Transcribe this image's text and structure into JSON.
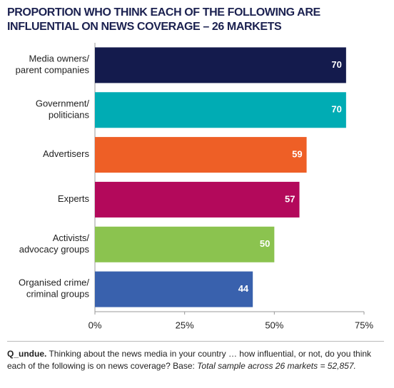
{
  "chart_data": {
    "type": "barh",
    "title": "PROPORTION WHO THINK EACH OF THE FOLLOWING ARE INFLUENTIAL ON NEWS COVERAGE – 26 MARKETS",
    "categories": [
      [
        "Media owners/",
        "parent companies"
      ],
      [
        "Government/",
        "politicians"
      ],
      [
        "Advertisers"
      ],
      [
        "Experts"
      ],
      [
        "Activists/",
        "advocacy groups"
      ],
      [
        "Organised crime/",
        "criminal groups"
      ]
    ],
    "values": [
      70,
      70,
      59,
      57,
      50,
      44
    ],
    "colors": [
      "#141b4d",
      "#00acb4",
      "#ee5f26",
      "#b3095b",
      "#8bc34f",
      "#3961ad"
    ],
    "xlim": [
      0,
      75
    ],
    "xticks": [
      {
        "value": 0,
        "label": "0%"
      },
      {
        "value": 25,
        "label": "25%"
      },
      {
        "value": 50,
        "label": "50%"
      },
      {
        "value": 75,
        "label": "75%"
      }
    ],
    "footnote": {
      "lead": "Q_undue.",
      "body": "Thinking about the news media in your country … how influential, or not, do you think each of the following is on news coverage? Base:",
      "italic": "Total sample across 26 markets = 52,857."
    }
  }
}
